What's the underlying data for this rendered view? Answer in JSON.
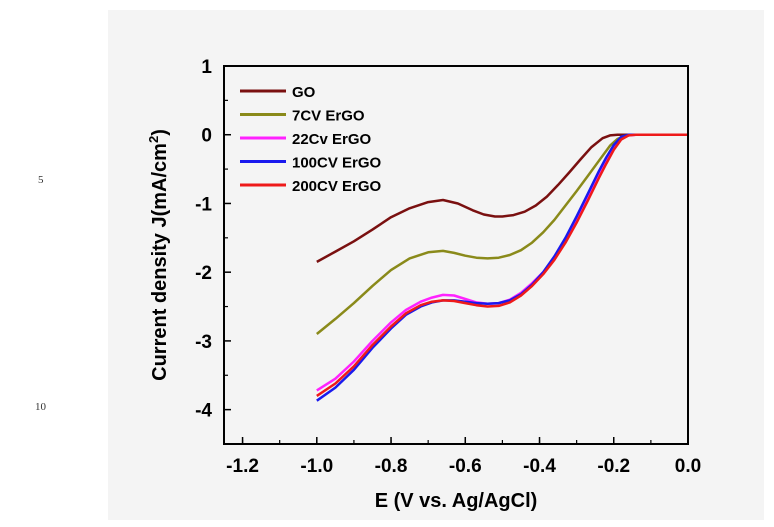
{
  "line_numbers": [
    "5",
    "10"
  ],
  "chart_data": {
    "type": "line",
    "title": "",
    "xlabel": "E (V vs. Ag/AgCl)",
    "ylabel": "Current density J(mA/cm²)",
    "ylabel_main": "Current density J(mA/cm",
    "ylabel_sup": "2",
    "ylabel_tail": ")",
    "xlim": [
      -1.25,
      0.0
    ],
    "ylim": [
      -4.5,
      1.0
    ],
    "xticks": [
      -1.2,
      -1.0,
      -0.8,
      -0.6,
      -0.4,
      -0.2,
      0.0
    ],
    "xtick_labels": [
      "-1.2",
      "-1.0",
      "-0.8",
      "-0.6",
      "-0.4",
      "-0.2",
      "0.0"
    ],
    "yticks": [
      1,
      0,
      -1,
      -2,
      -3,
      -4
    ],
    "ytick_labels": [
      "1",
      "0",
      "-1",
      "-2",
      "-3",
      "-4"
    ],
    "grid": false,
    "legend_position": "top-left",
    "series": [
      {
        "name": "GO",
        "color": "#7a1010",
        "x": [
          -1.0,
          -0.95,
          -0.9,
          -0.85,
          -0.8,
          -0.75,
          -0.7,
          -0.66,
          -0.62,
          -0.58,
          -0.55,
          -0.52,
          -0.5,
          -0.47,
          -0.44,
          -0.41,
          -0.38,
          -0.35,
          -0.32,
          -0.29,
          -0.26,
          -0.23,
          -0.21,
          -0.19,
          -0.17,
          -0.15,
          -0.12,
          -0.08,
          -0.04,
          0.0
        ],
        "y": [
          -1.85,
          -1.7,
          -1.55,
          -1.38,
          -1.2,
          -1.07,
          -0.98,
          -0.95,
          -1.0,
          -1.1,
          -1.16,
          -1.19,
          -1.19,
          -1.17,
          -1.12,
          -1.03,
          -0.9,
          -0.73,
          -0.55,
          -0.36,
          -0.18,
          -0.05,
          -0.01,
          0.0,
          0.0,
          0.0,
          0.0,
          0.0,
          0.0,
          0.0
        ]
      },
      {
        "name": "7CV ErGO",
        "color": "#8a8a1a",
        "x": [
          -1.0,
          -0.95,
          -0.9,
          -0.85,
          -0.8,
          -0.75,
          -0.7,
          -0.66,
          -0.63,
          -0.6,
          -0.57,
          -0.54,
          -0.51,
          -0.48,
          -0.45,
          -0.42,
          -0.39,
          -0.36,
          -0.33,
          -0.3,
          -0.27,
          -0.24,
          -0.21,
          -0.19,
          -0.17,
          -0.15,
          -0.12,
          -0.08,
          -0.04,
          0.0
        ],
        "y": [
          -2.9,
          -2.68,
          -2.45,
          -2.2,
          -1.97,
          -1.8,
          -1.71,
          -1.69,
          -1.72,
          -1.76,
          -1.79,
          -1.8,
          -1.79,
          -1.75,
          -1.68,
          -1.57,
          -1.42,
          -1.24,
          -1.03,
          -0.82,
          -0.6,
          -0.38,
          -0.16,
          -0.06,
          -0.02,
          0.0,
          0.0,
          0.0,
          0.0,
          0.0
        ]
      },
      {
        "name": "22Cv ErGO",
        "color": "#ff22ff",
        "x": [
          -1.0,
          -0.95,
          -0.9,
          -0.85,
          -0.8,
          -0.76,
          -0.72,
          -0.69,
          -0.66,
          -0.63,
          -0.6,
          -0.57,
          -0.54,
          -0.51,
          -0.48,
          -0.45,
          -0.42,
          -0.39,
          -0.36,
          -0.33,
          -0.3,
          -0.27,
          -0.24,
          -0.22,
          -0.2,
          -0.18,
          -0.16,
          -0.14,
          -0.1,
          -0.05,
          0.0
        ],
        "y": [
          -3.72,
          -3.55,
          -3.3,
          -3.0,
          -2.73,
          -2.55,
          -2.43,
          -2.37,
          -2.33,
          -2.34,
          -2.39,
          -2.44,
          -2.46,
          -2.45,
          -2.4,
          -2.3,
          -2.16,
          -2.0,
          -1.78,
          -1.52,
          -1.22,
          -0.9,
          -0.58,
          -0.38,
          -0.2,
          -0.06,
          -0.01,
          0.0,
          0.0,
          0.0,
          0.0
        ]
      },
      {
        "name": "100CV ErGO",
        "color": "#1a1aee",
        "x": [
          -1.0,
          -0.95,
          -0.9,
          -0.85,
          -0.8,
          -0.76,
          -0.72,
          -0.69,
          -0.66,
          -0.63,
          -0.6,
          -0.57,
          -0.54,
          -0.51,
          -0.48,
          -0.45,
          -0.42,
          -0.39,
          -0.36,
          -0.33,
          -0.3,
          -0.27,
          -0.24,
          -0.22,
          -0.2,
          -0.18,
          -0.16,
          -0.14,
          -0.1,
          -0.05,
          0.0
        ],
        "y": [
          -3.87,
          -3.68,
          -3.42,
          -3.1,
          -2.82,
          -2.62,
          -2.5,
          -2.44,
          -2.41,
          -2.41,
          -2.43,
          -2.45,
          -2.46,
          -2.45,
          -2.41,
          -2.32,
          -2.18,
          -2.0,
          -1.77,
          -1.5,
          -1.19,
          -0.86,
          -0.53,
          -0.33,
          -0.15,
          -0.03,
          0.0,
          0.0,
          0.0,
          0.0,
          0.0
        ]
      },
      {
        "name": "200CV ErGO",
        "color": "#ee1a1a",
        "x": [
          -1.0,
          -0.95,
          -0.9,
          -0.85,
          -0.8,
          -0.76,
          -0.72,
          -0.69,
          -0.66,
          -0.63,
          -0.6,
          -0.57,
          -0.54,
          -0.51,
          -0.48,
          -0.45,
          -0.42,
          -0.39,
          -0.36,
          -0.33,
          -0.3,
          -0.27,
          -0.24,
          -0.22,
          -0.2,
          -0.18,
          -0.16,
          -0.14,
          -0.1,
          -0.05,
          0.0
        ],
        "y": [
          -3.8,
          -3.62,
          -3.37,
          -3.06,
          -2.79,
          -2.6,
          -2.48,
          -2.43,
          -2.41,
          -2.42,
          -2.45,
          -2.48,
          -2.5,
          -2.49,
          -2.44,
          -2.34,
          -2.2,
          -2.03,
          -1.82,
          -1.57,
          -1.28,
          -0.96,
          -0.63,
          -0.42,
          -0.22,
          -0.07,
          -0.01,
          0.0,
          0.0,
          0.0,
          0.0
        ]
      }
    ]
  }
}
